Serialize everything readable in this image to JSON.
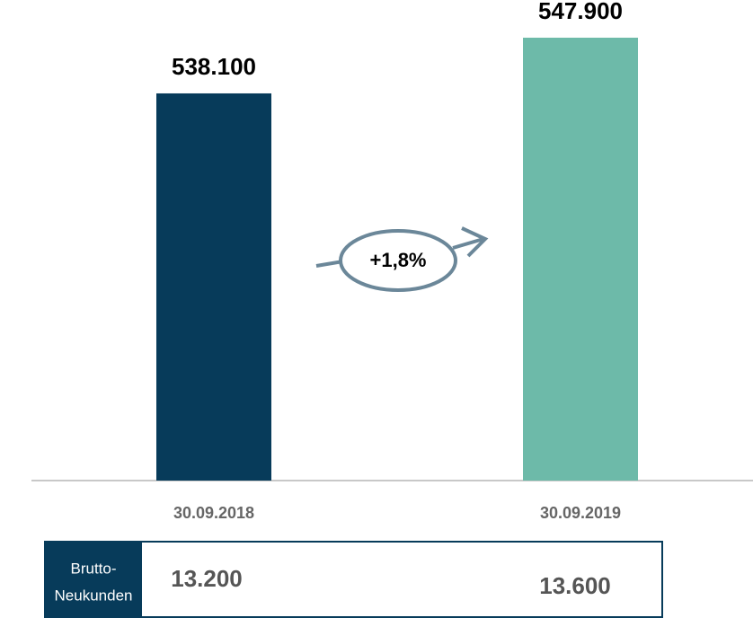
{
  "chart_data": {
    "type": "bar",
    "categories": [
      "30.09.2018",
      "30.09.2019"
    ],
    "values": [
      538100,
      547900
    ],
    "value_labels": [
      "538.100",
      "547.900"
    ],
    "colors": [
      "#073b5a",
      "#6dbaa9"
    ],
    "ylim": [
      470000,
      552000
    ],
    "annotation": "+1,8%"
  },
  "table": {
    "label": [
      "Brutto-",
      "Neukunden"
    ],
    "values": [
      "13.200",
      "13.600"
    ]
  }
}
